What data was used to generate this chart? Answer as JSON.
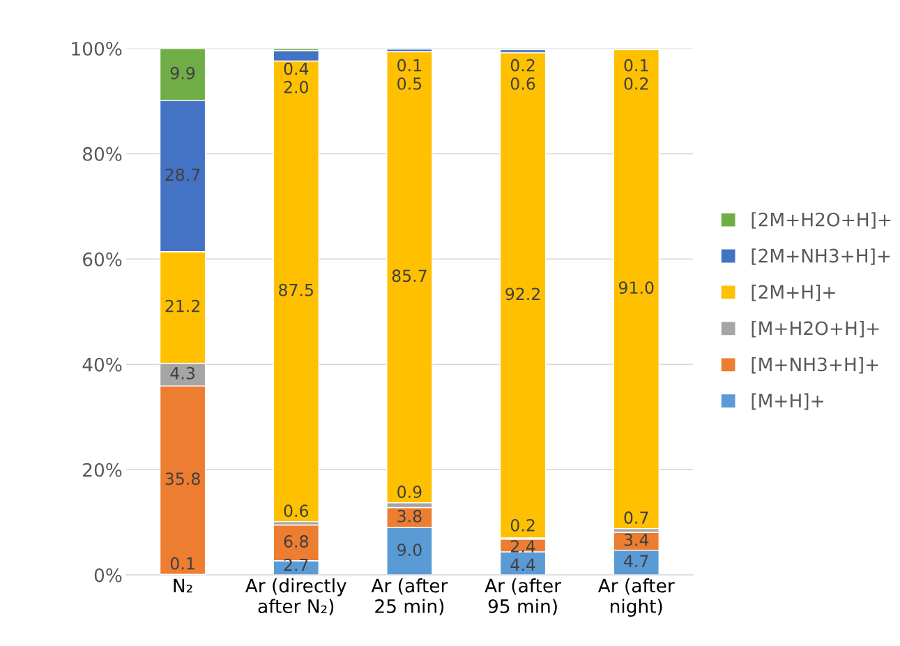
{
  "chart_data": {
    "type": "bar",
    "stacked": true,
    "categories": [
      "N₂",
      "Ar (directly\nafter N₂)",
      "Ar (after\n25 min)",
      "Ar (after\n95 min)",
      "Ar (after\nnight)"
    ],
    "series": [
      {
        "name": "[M+H]+",
        "color": "#5b9bd5",
        "values": [
          0.1,
          2.7,
          9.0,
          4.4,
          4.7
        ],
        "value_labels": [
          "0.1",
          "2.7",
          "9.0",
          "4.4",
          "4.7"
        ]
      },
      {
        "name": "[M+NH3+H]+",
        "color": "#ed7d31",
        "values": [
          35.8,
          6.8,
          3.8,
          2.4,
          3.4
        ],
        "value_labels": [
          "35.8",
          "6.8",
          "3.8",
          "2.4",
          "3.4"
        ]
      },
      {
        "name": "[M+H2O+H]+",
        "color": "#a5a5a5",
        "values": [
          4.3,
          0.6,
          0.9,
          0.2,
          0.7
        ],
        "value_labels": [
          "4.3",
          "0.6",
          "0.9",
          "0.2",
          "0.7"
        ]
      },
      {
        "name": "[2M+H]+",
        "color": "#ffc000",
        "values": [
          21.2,
          87.5,
          85.7,
          92.2,
          91.0
        ],
        "value_labels": [
          "21.2",
          "87.5",
          "85.7",
          "92.2",
          "91.0"
        ]
      },
      {
        "name": "[2M+NH3+H]+",
        "color": "#4472c4",
        "values": [
          28.7,
          2.0,
          0.5,
          0.6,
          0.2
        ],
        "value_labels": [
          "28.7",
          "2.0",
          "0.5",
          "0.6",
          "0.2"
        ]
      },
      {
        "name": "[2M+H2O+H]+",
        "color": "#70ad47",
        "values": [
          9.9,
          0.4,
          0.1,
          0.2,
          0.1
        ],
        "value_labels": [
          "9.9",
          "0.4",
          "0.1",
          "0.2",
          "0.1"
        ]
      }
    ],
    "ylim": [
      0,
      100
    ],
    "yticks": [
      {
        "value": 0,
        "label": "0%"
      },
      {
        "value": 20,
        "label": "20%"
      },
      {
        "value": 40,
        "label": "40%"
      },
      {
        "value": 60,
        "label": "60%"
      },
      {
        "value": 80,
        "label": "80%"
      },
      {
        "value": 100,
        "label": "100%"
      }
    ],
    "grid": "y",
    "legend": "right"
  }
}
